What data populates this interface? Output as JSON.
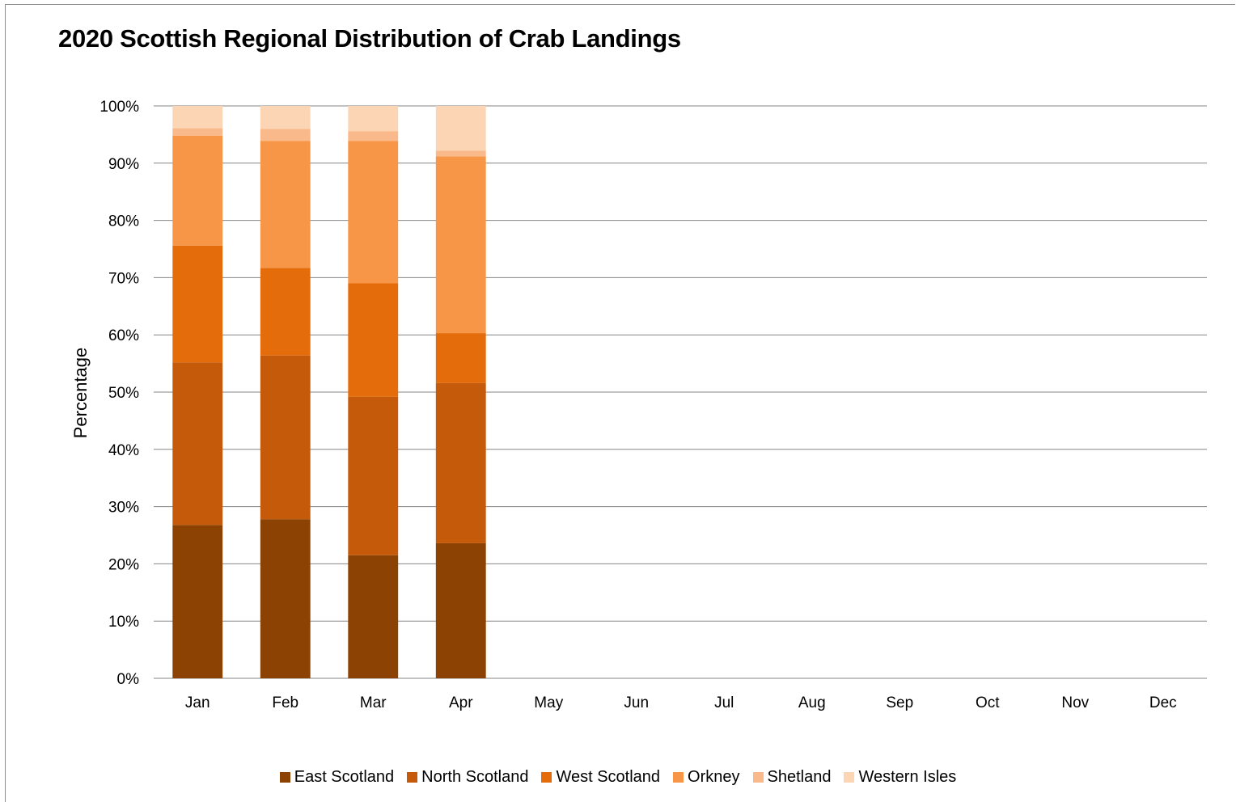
{
  "chart_data": {
    "type": "bar",
    "stacked": true,
    "title": "2020 Scottish Regional Distribution of Crab Landings",
    "xlabel": "",
    "ylabel": "Percentage",
    "ylim": [
      0,
      100
    ],
    "yticks": [
      "0%",
      "10%",
      "20%",
      "30%",
      "40%",
      "50%",
      "60%",
      "70%",
      "80%",
      "90%",
      "100%"
    ],
    "grid": true,
    "legend_position": "bottom",
    "categories": [
      "Jan",
      "Feb",
      "Mar",
      "Apr",
      "May",
      "Jun",
      "Jul",
      "Aug",
      "Sep",
      "Oct",
      "Nov",
      "Dec"
    ],
    "series": [
      {
        "name": "East Scotland",
        "color": "#8b4203",
        "values": [
          26.8,
          27.8,
          21.5,
          23.6,
          null,
          null,
          null,
          null,
          null,
          null,
          null,
          null
        ]
      },
      {
        "name": "North Scotland",
        "color": "#c55a0b",
        "values": [
          28.4,
          28.6,
          27.7,
          28.0,
          null,
          null,
          null,
          null,
          null,
          null,
          null,
          null
        ]
      },
      {
        "name": "West Scotland",
        "color": "#e46c0a",
        "values": [
          20.4,
          15.3,
          19.8,
          8.7,
          null,
          null,
          null,
          null,
          null,
          null,
          null,
          null
        ]
      },
      {
        "name": "Orkney",
        "color": "#f79646",
        "values": [
          19.2,
          22.2,
          24.9,
          30.9,
          null,
          null,
          null,
          null,
          null,
          null,
          null,
          null
        ]
      },
      {
        "name": "Shetland",
        "color": "#fab98a",
        "values": [
          1.3,
          2.1,
          1.7,
          1.0,
          null,
          null,
          null,
          null,
          null,
          null,
          null,
          null
        ]
      },
      {
        "name": "Western Isles",
        "color": "#fcd5b5",
        "values": [
          3.9,
          4.0,
          4.4,
          7.8,
          null,
          null,
          null,
          null,
          null,
          null,
          null,
          null
        ]
      }
    ]
  }
}
